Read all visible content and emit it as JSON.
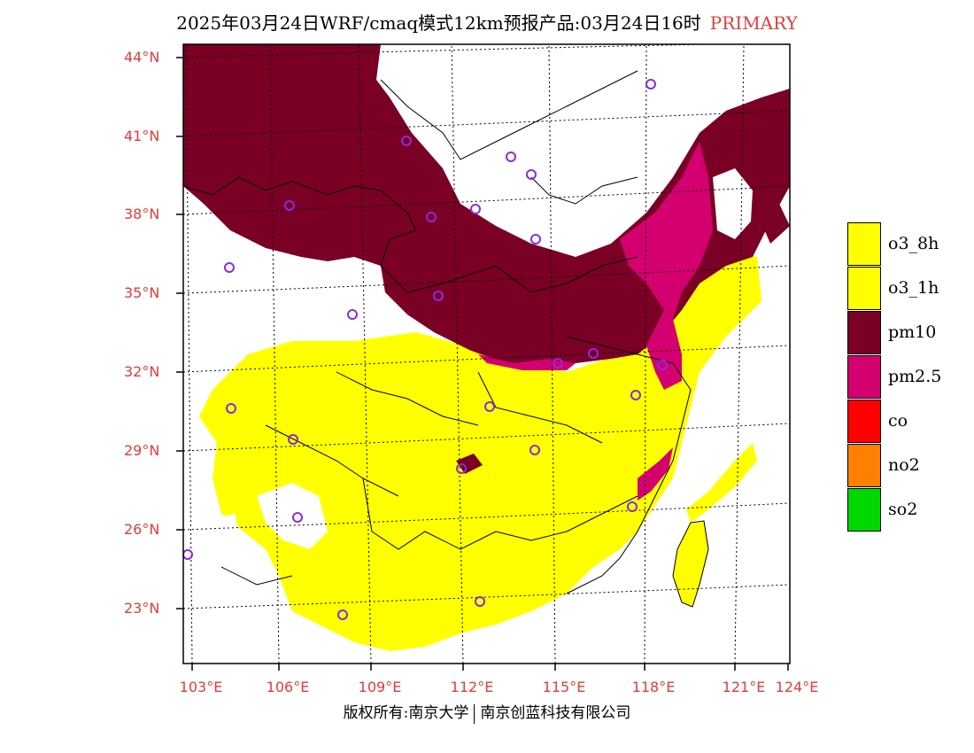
{
  "header": {
    "title": "2025年03月24日WRF/cmaq模式12km预报产品:03月24日16时",
    "tag": "PRIMARY"
  },
  "axes": {
    "lat_labels": [
      "44°N",
      "41°N",
      "38°N",
      "35°N",
      "32°N",
      "29°N",
      "26°N",
      "23°N"
    ],
    "lon_labels": [
      "103°E",
      "106°E",
      "109°E",
      "112°E",
      "115°E",
      "118°E",
      "121°E",
      "124°E"
    ]
  },
  "legend": [
    {
      "label": "o3_8h",
      "color": "#ffff00"
    },
    {
      "label": "o3_1h",
      "color": "#ffff00"
    },
    {
      "label": "pm10",
      "color": "#7a0026"
    },
    {
      "label": "pm2.5",
      "color": "#d40070"
    },
    {
      "label": "co",
      "color": "#ff0000"
    },
    {
      "label": "no2",
      "color": "#ff7f00"
    },
    {
      "label": "so2",
      "color": "#00d800"
    }
  ],
  "footer": {
    "left": "版权所有:南京大学",
    "right": "南京创蓝科技有限公司"
  },
  "colors": {
    "pm10": "#7a0026",
    "pm25": "#d40070",
    "o3": "#ffff00",
    "station": "#8a2be2",
    "accent": "#e23b3b"
  }
}
